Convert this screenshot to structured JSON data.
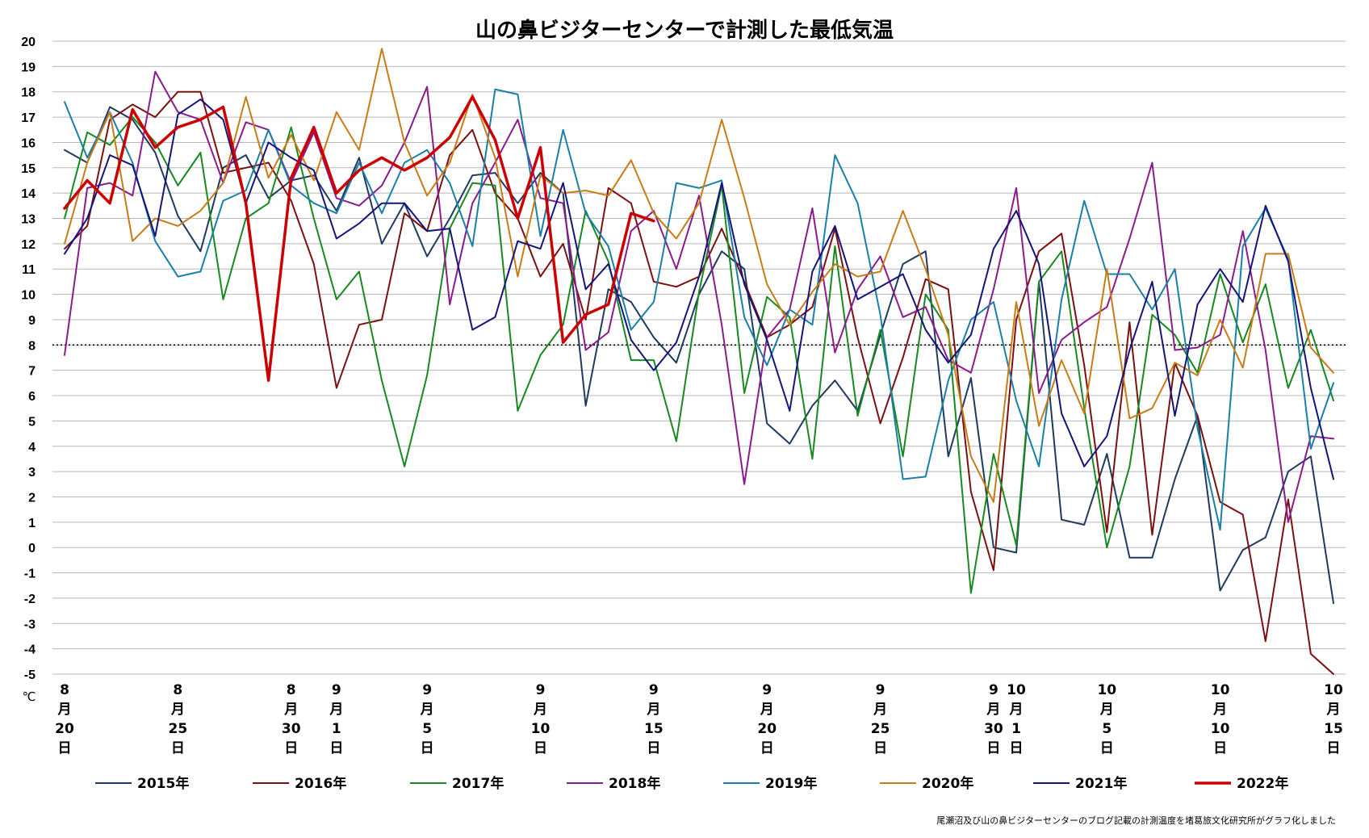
{
  "chart_data": {
    "type": "line",
    "title": "山の鼻ビジターセンターで計測した最低気温",
    "ylabel": "℃",
    "ylim": [
      -5,
      20
    ],
    "y_ticks": [
      20,
      19,
      18,
      17,
      16,
      15,
      14,
      13,
      12,
      11,
      10,
      9,
      8,
      7,
      6,
      5,
      4,
      3,
      2,
      1,
      0,
      -1,
      -2,
      -3,
      -4,
      -5
    ],
    "reference_line": 8,
    "x_start": "8月20日",
    "x_end": "10月15日",
    "x_tick_labels": [
      {
        "day": 0,
        "label": "8月20日"
      },
      {
        "day": 5,
        "label": "8月25日"
      },
      {
        "day": 10,
        "label": "8月30日"
      },
      {
        "day": 12,
        "label": "9月1日"
      },
      {
        "day": 16,
        "label": "9月5日"
      },
      {
        "day": 21,
        "label": "9月10日"
      },
      {
        "day": 26,
        "label": "9月15日"
      },
      {
        "day": 31,
        "label": "9月20日"
      },
      {
        "day": 36,
        "label": "9月25日"
      },
      {
        "day": 41,
        "label": "9月30日"
      },
      {
        "day": 42,
        "label": "10月1日"
      },
      {
        "day": 46,
        "label": "10月5日"
      },
      {
        "day": 51,
        "label": "10月10日"
      },
      {
        "day": 56,
        "label": "10月15日"
      }
    ],
    "legend_position": "bottom",
    "series": [
      {
        "name": "2015年",
        "color": "#1f3a5f",
        "width": 2,
        "values": [
          15.7,
          15.2,
          17.4,
          16.9,
          15.6,
          13.1,
          11.7,
          15.0,
          15.5,
          13.8,
          14.5,
          14.7,
          13.3,
          15.4,
          12.0,
          13.6,
          11.5,
          13.0,
          14.7,
          14.8,
          13.6,
          14.8,
          14.0,
          5.6,
          10.2,
          9.7,
          8.3,
          7.3,
          10.0,
          11.7,
          11.0,
          4.9,
          4.1,
          5.6,
          6.6,
          5.4,
          8.4,
          11.2,
          11.7,
          3.6,
          6.7,
          0.0,
          -0.2,
          10.5,
          1.1,
          0.9,
          3.7,
          -0.4,
          -0.4,
          2.7,
          5.2,
          -1.7,
          -0.1,
          0.4,
          3.0,
          3.6,
          -2.2
        ]
      },
      {
        "name": "2016年",
        "color": "#7b1010",
        "width": 2,
        "values": [
          11.8,
          12.7,
          16.9,
          17.5,
          17.0,
          18.0,
          18.0,
          14.8,
          15.0,
          15.2,
          13.7,
          11.2,
          6.3,
          8.8,
          9.0,
          13.2,
          12.5,
          15.5,
          16.5,
          14.0,
          13.0,
          10.7,
          12.0,
          9.0,
          14.2,
          13.6,
          10.5,
          10.3,
          10.7,
          12.6,
          10.5,
          8.3,
          8.8,
          9.5,
          12.6,
          8.3,
          4.9,
          7.5,
          10.6,
          10.2,
          2.2,
          -0.9,
          9.0,
          11.7,
          12.4,
          7.2,
          0.6,
          8.9,
          0.5,
          7.3,
          5.2,
          1.8,
          1.3,
          -3.7,
          1.9,
          -4.2,
          -5.0
        ]
      },
      {
        "name": "2017年",
        "color": "#17891f",
        "width": 2,
        "values": [
          13.0,
          16.4,
          15.9,
          17.0,
          16.0,
          14.3,
          15.6,
          9.8,
          13.0,
          13.6,
          16.6,
          13.0,
          9.8,
          10.9,
          6.6,
          3.2,
          6.8,
          12.6,
          14.4,
          14.3,
          5.4,
          7.6,
          8.8,
          13.3,
          11.3,
          7.4,
          7.4,
          4.2,
          10.1,
          14.3,
          6.1,
          9.9,
          9.1,
          3.5,
          11.9,
          5.2,
          8.6,
          3.6,
          10.0,
          8.6,
          -1.8,
          3.7,
          0.1,
          10.5,
          11.7,
          5.5,
          0.0,
          3.2,
          9.2,
          8.4,
          6.9,
          10.8,
          8.1,
          10.4,
          6.3,
          8.6,
          5.8
        ]
      },
      {
        "name": "2018年",
        "color": "#8b1a8b",
        "width": 2,
        "values": [
          7.6,
          14.2,
          14.4,
          13.9,
          18.8,
          17.2,
          16.9,
          14.4,
          16.8,
          16.5,
          14.4,
          16.4,
          13.8,
          13.5,
          14.3,
          16.0,
          18.2,
          9.6,
          13.6,
          15.2,
          16.9,
          13.8,
          13.6,
          7.8,
          8.5,
          12.5,
          13.3,
          11.0,
          13.9,
          8.8,
          2.5,
          8.3,
          9.4,
          13.4,
          7.7,
          10.2,
          11.5,
          9.1,
          9.5,
          7.4,
          6.9,
          10.2,
          14.2,
          6.1,
          8.2,
          8.9,
          9.5,
          12.2,
          15.2,
          7.8,
          7.9,
          8.4,
          12.5,
          7.8,
          1.0,
          4.4,
          4.3
        ]
      },
      {
        "name": "2019年",
        "color": "#1a7fa8",
        "width": 2,
        "values": [
          17.6,
          15.4,
          17.2,
          15.2,
          12.1,
          10.7,
          10.9,
          13.7,
          14.1,
          16.5,
          14.3,
          13.6,
          13.2,
          15.2,
          13.2,
          15.2,
          15.7,
          14.4,
          11.9,
          18.1,
          17.9,
          12.3,
          16.5,
          13.2,
          11.9,
          8.6,
          9.7,
          14.4,
          14.2,
          14.5,
          9.1,
          7.2,
          9.4,
          8.8,
          15.5,
          13.6,
          9.2,
          2.7,
          2.8,
          6.6,
          9.0,
          9.7,
          5.8,
          3.2,
          9.8,
          13.7,
          10.8,
          10.8,
          9.4,
          11.0,
          4.7,
          0.7,
          11.9,
          13.4,
          11.4,
          3.9,
          6.5
        ]
      },
      {
        "name": "2020年",
        "color": "#c97b16",
        "width": 2,
        "values": [
          12.0,
          15.2,
          17.2,
          12.1,
          13.0,
          12.7,
          13.3,
          14.4,
          17.8,
          14.6,
          16.3,
          14.5,
          17.2,
          15.7,
          19.7,
          16.0,
          13.9,
          15.2,
          17.9,
          15.4,
          10.7,
          14.7,
          14.0,
          14.1,
          13.9,
          15.3,
          13.2,
          12.2,
          13.6,
          16.9,
          13.8,
          10.4,
          8.8,
          10.1,
          11.2,
          10.7,
          10.9,
          13.3,
          11.0,
          8.4,
          3.6,
          1.8,
          9.7,
          4.8,
          7.4,
          5.3,
          11.0,
          5.1,
          5.5,
          7.3,
          6.8,
          9.0,
          7.1,
          11.6,
          11.6,
          7.9,
          6.9
        ]
      },
      {
        "name": "2021年",
        "color": "#14147a",
        "width": 2,
        "values": [
          11.6,
          13.0,
          15.5,
          15.1,
          12.3,
          17.1,
          17.7,
          16.9,
          13.6,
          16.0,
          15.4,
          14.9,
          12.2,
          12.8,
          13.6,
          13.6,
          12.5,
          12.6,
          8.6,
          9.1,
          12.1,
          11.8,
          14.4,
          10.2,
          11.2,
          8.2,
          7.0,
          8.1,
          10.7,
          14.4,
          10.4,
          8.2,
          5.4,
          10.9,
          12.7,
          9.8,
          10.3,
          10.8,
          8.6,
          7.3,
          8.4,
          11.8,
          13.3,
          11.2,
          5.3,
          3.2,
          4.4,
          7.8,
          10.5,
          5.2,
          9.6,
          11.0,
          9.7,
          13.5,
          11.3,
          6.3,
          2.7
        ]
      },
      {
        "name": "2022年",
        "color": "#cc0000",
        "width": 3.5,
        "values": [
          13.4,
          14.5,
          13.6,
          17.3,
          15.8,
          16.6,
          16.9,
          17.4,
          13.6,
          6.6,
          14.6,
          16.6,
          14.0,
          14.9,
          15.4,
          14.9,
          15.4,
          16.2,
          17.8,
          16.1,
          13.0,
          15.8,
          8.1,
          9.2,
          9.6,
          13.2,
          12.9,
          null,
          null,
          null,
          null,
          null,
          null,
          null,
          null,
          null,
          null,
          null,
          null,
          null,
          null,
          null,
          null,
          null,
          null,
          null,
          null,
          null,
          null,
          null,
          null,
          null,
          null,
          null,
          null,
          null,
          null
        ]
      }
    ],
    "credit": "尾瀬沼及び山の鼻ビジターセンターのブログ記載の計測温度を堵葛旅文化研究所がグラフ化しました"
  }
}
